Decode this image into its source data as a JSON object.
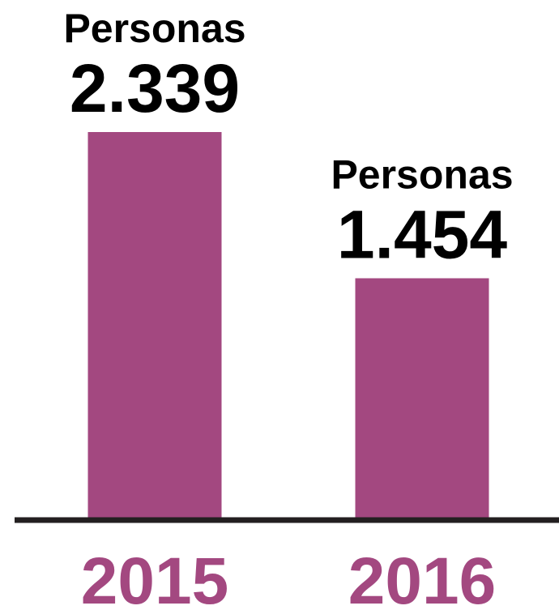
{
  "chart_data": {
    "type": "bar",
    "categories": [
      "2015",
      "2016"
    ],
    "values": [
      2339,
      1454
    ],
    "value_labels": [
      "2.339",
      "1.454"
    ],
    "unit_label": "Personas",
    "color": "#a34880"
  }
}
